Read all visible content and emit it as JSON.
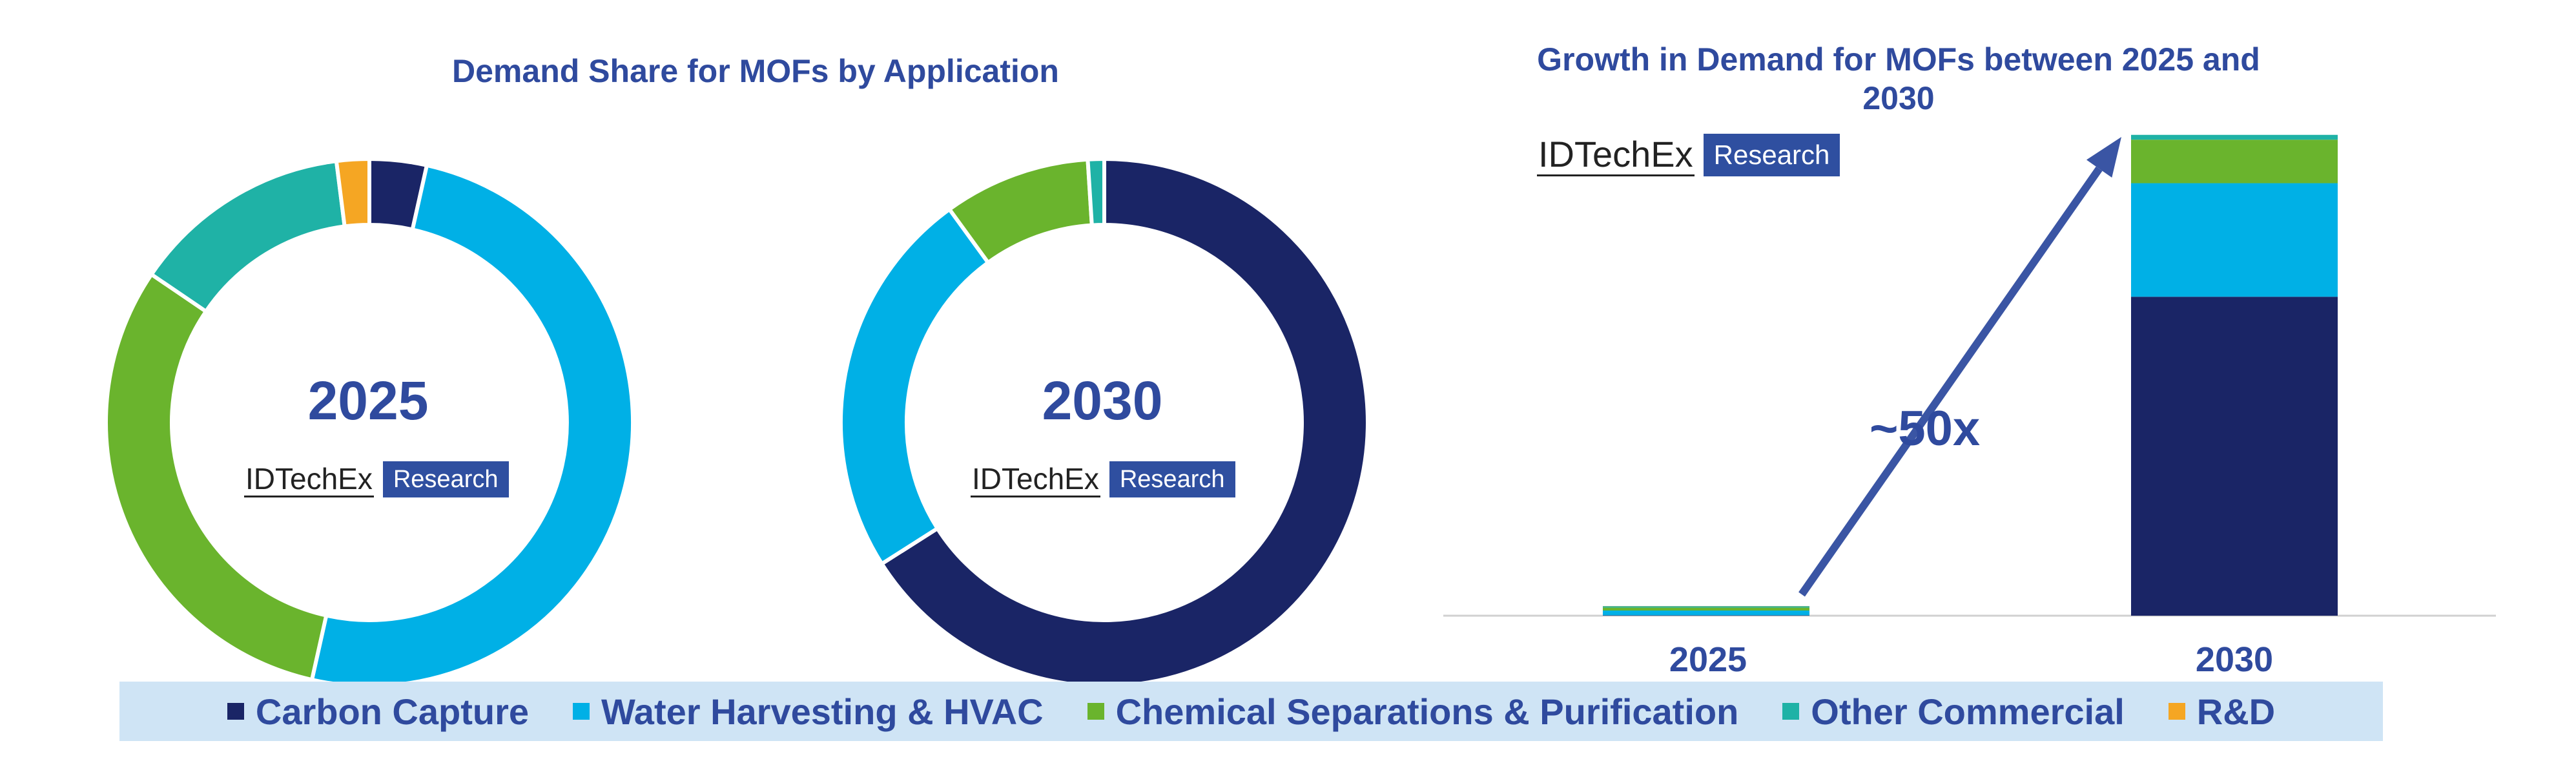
{
  "left_title": "Demand Share for MOFs by Application",
  "right_title": "Growth in Demand for MOFs between 2025 and 2030",
  "logo": {
    "word": "IDTechEx",
    "box": "Research"
  },
  "growth_label": "~50x",
  "colors": {
    "Carbon Capture": "#1a2566",
    "Water Harvesting & HVAC": "#00b0e6",
    "Chemical Separations & Purification": "#6ab42d",
    "Other Commercial": "#1fb2a6",
    "R&D": "#f5a623"
  },
  "legend": [
    "Carbon Capture",
    "Water Harvesting & HVAC",
    "Chemical Separations & Purification",
    "Other Commercial",
    "R&D"
  ],
  "chart_data": [
    {
      "type": "pie",
      "center_label": "2025",
      "slices": [
        {
          "name": "Carbon Capture",
          "value": 3.5
        },
        {
          "name": "Water Harvesting & HVAC",
          "value": 50
        },
        {
          "name": "Chemical Separations & Purification",
          "value": 31
        },
        {
          "name": "Other Commercial",
          "value": 13.5
        },
        {
          "name": "R&D",
          "value": 2
        }
      ]
    },
    {
      "type": "pie",
      "center_label": "2030",
      "slices": [
        {
          "name": "Carbon Capture",
          "value": 66
        },
        {
          "name": "Water Harvesting & HVAC",
          "value": 24
        },
        {
          "name": "Chemical Separations & Purification",
          "value": 9
        },
        {
          "name": "Other Commercial",
          "value": 1
        },
        {
          "name": "R&D",
          "value": 0
        }
      ]
    },
    {
      "type": "bar",
      "stacked": true,
      "title": "Growth in Demand for MOFs between 2025 and 2030",
      "categories": [
        "2025",
        "2030"
      ],
      "series": [
        {
          "name": "Carbon Capture",
          "values": [
            0.07,
            66
          ]
        },
        {
          "name": "Water Harvesting & HVAC",
          "values": [
            1,
            23.5
          ]
        },
        {
          "name": "Chemical Separations & Purification",
          "values": [
            0.62,
            9
          ]
        },
        {
          "name": "Other Commercial",
          "values": [
            0.27,
            1
          ]
        },
        {
          "name": "R&D",
          "values": [
            0.04,
            0
          ]
        }
      ],
      "ylim": [
        0,
        100
      ],
      "annotation": "~50x"
    }
  ]
}
